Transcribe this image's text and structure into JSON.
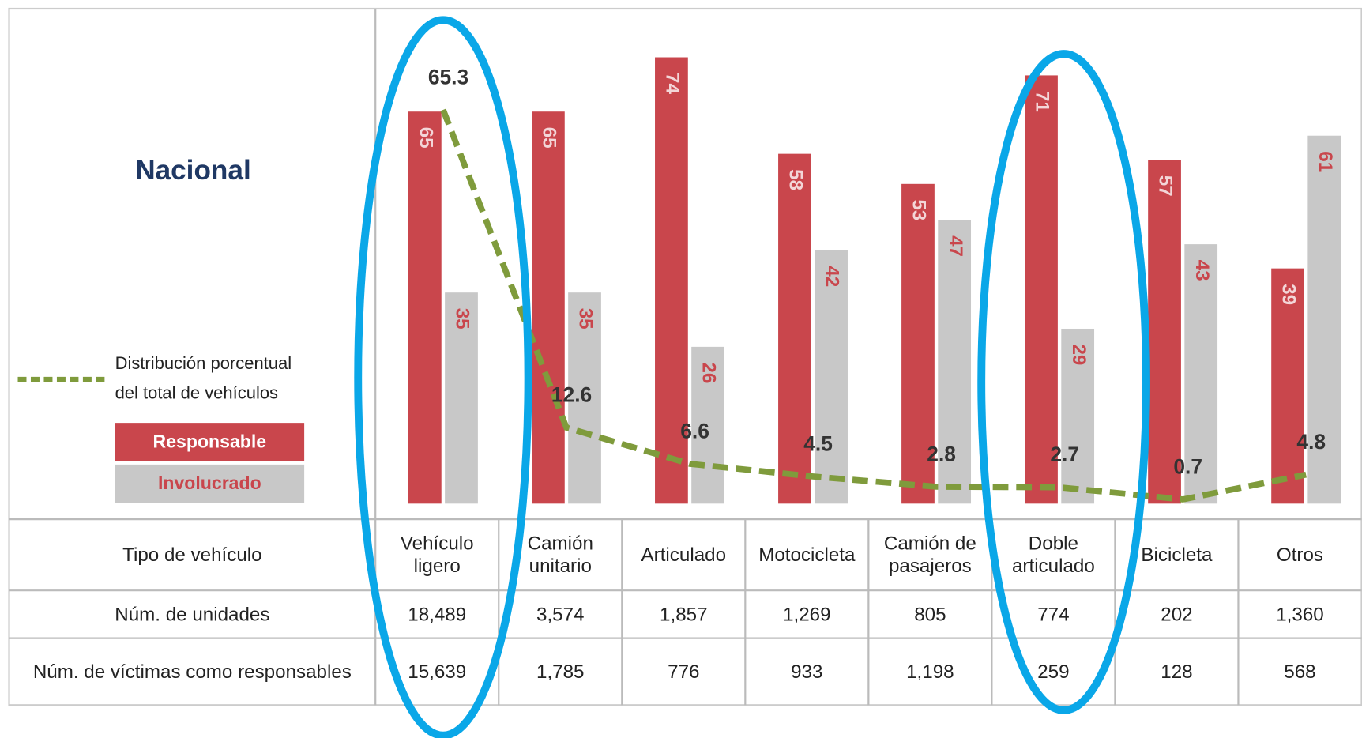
{
  "chart_data": {
    "type": "bar",
    "title": "Nacional",
    "categories": [
      "Vehículo ligero",
      "Camión unitario",
      "Articulado",
      "Motocicleta",
      "Camión de pasajeros",
      "Doble articulado",
      "Bicicleta",
      "Otros"
    ],
    "series": [
      {
        "name": "Responsable",
        "color": "#c9464c",
        "values": [
          65,
          65,
          74,
          58,
          53,
          71,
          57,
          39
        ]
      },
      {
        "name": "Involucrado",
        "color": "#c8c8c8",
        "values": [
          35,
          35,
          26,
          42,
          47,
          29,
          43,
          61
        ]
      },
      {
        "name": "Distribución porcentual del total de vehículos",
        "type": "line",
        "color": "#7f9b3c",
        "values": [
          65.3,
          12.6,
          6.6,
          4.5,
          2.8,
          2.7,
          0.7,
          4.8
        ]
      }
    ]
  },
  "table": {
    "header": "Tipo de vehículo",
    "rows": [
      {
        "label": "Núm. de unidades",
        "values": [
          "18,489",
          "3,574",
          "1,857",
          "1,269",
          "805",
          "774",
          "202",
          "1,360"
        ]
      },
      {
        "label": "Núm. de víctimas como responsables",
        "values": [
          "15,639",
          "1,785",
          "776",
          "933",
          "1,198",
          "259",
          "128",
          "568"
        ]
      }
    ]
  }
}
